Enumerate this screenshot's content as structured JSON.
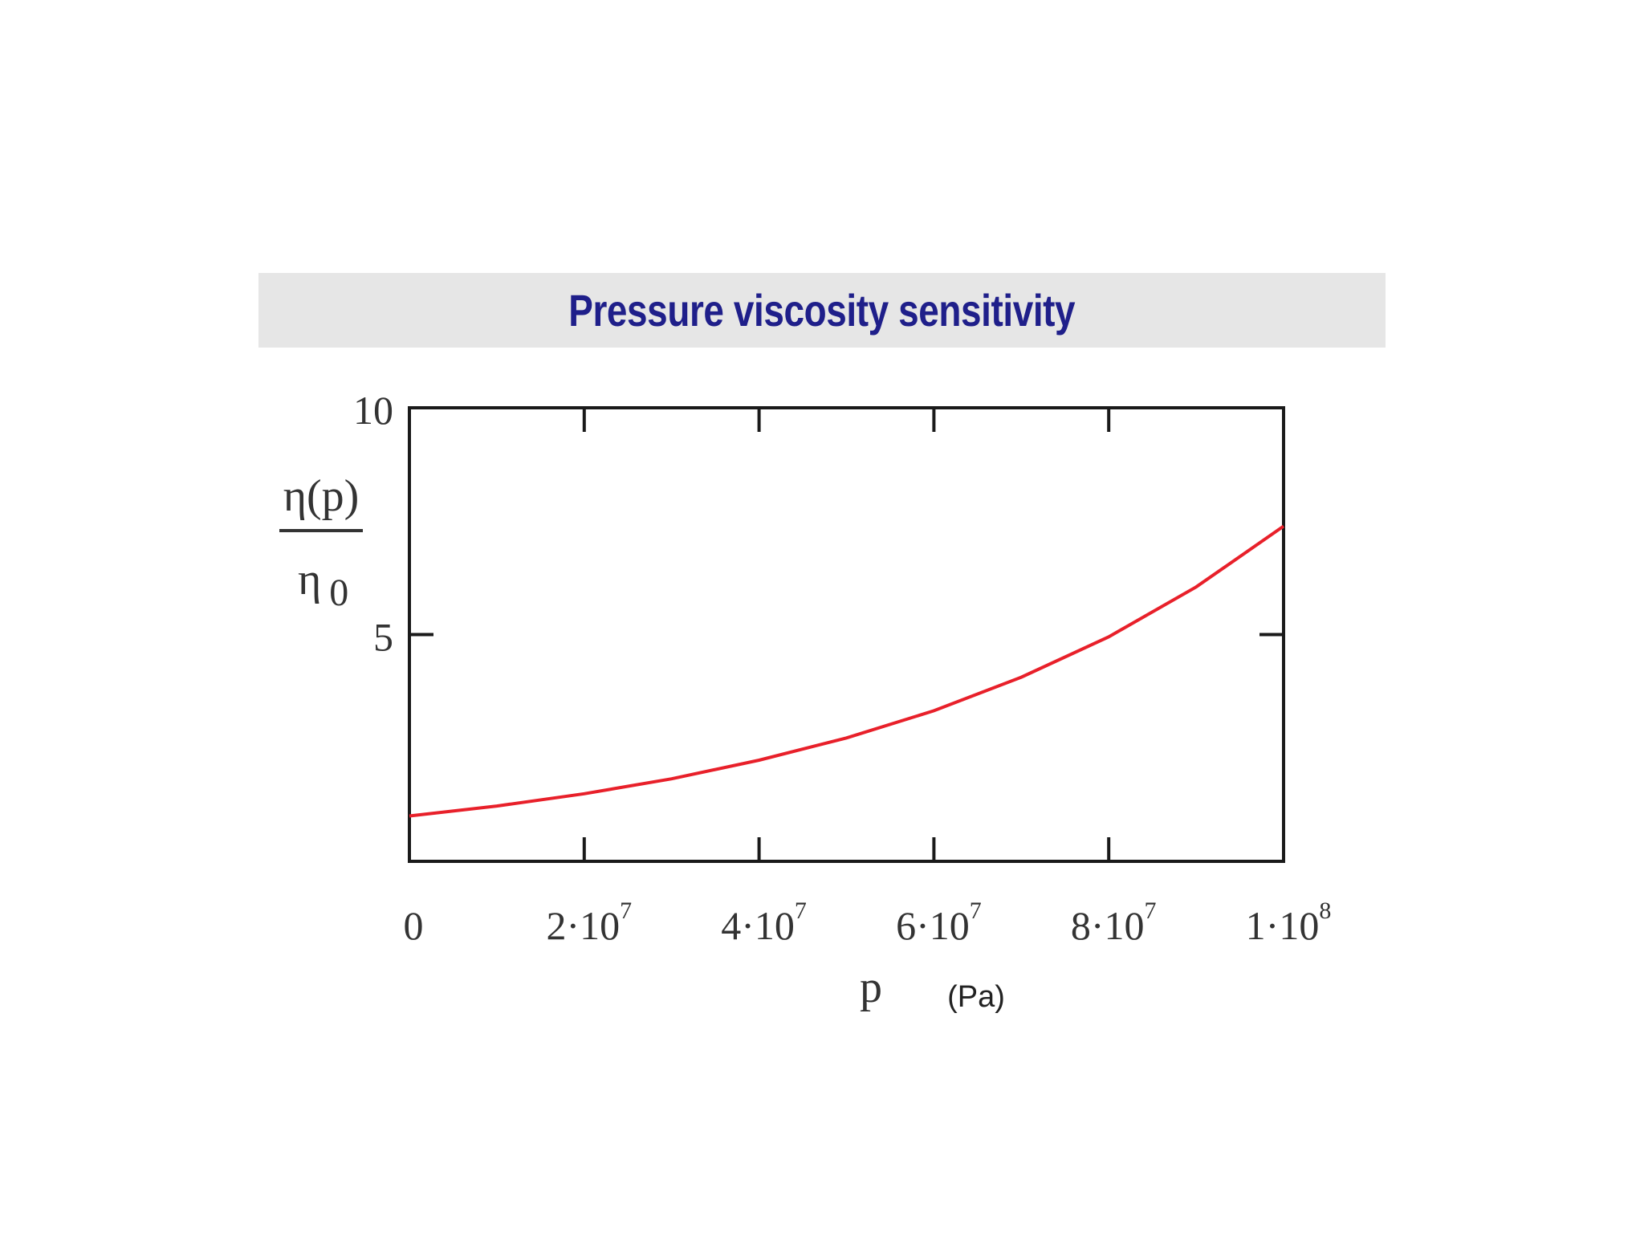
{
  "chart_data": {
    "type": "line",
    "title": "Pressure viscosity sensitivity",
    "xlabel": "p",
    "xunit": "(Pa)",
    "ylabel_numerator": "η(p)",
    "ylabel_denominator_symbol": "η",
    "ylabel_denominator_subscript": "0",
    "xlim": [
      0,
      100000000
    ],
    "ylim": [
      0,
      10
    ],
    "x_ticks": [
      {
        "value": 0,
        "mantissa": "0",
        "exponent": ""
      },
      {
        "value": 20000000,
        "mantissa": "2·10",
        "exponent": "7"
      },
      {
        "value": 40000000,
        "mantissa": "4·10",
        "exponent": "7"
      },
      {
        "value": 60000000,
        "mantissa": "6·10",
        "exponent": "7"
      },
      {
        "value": 80000000,
        "mantissa": "8·10",
        "exponent": "7"
      },
      {
        "value": 100000000,
        "mantissa": "1·10",
        "exponent": "8"
      }
    ],
    "y_ticks": [
      {
        "value": 5,
        "label": "5"
      },
      {
        "value": 10,
        "label": "10"
      }
    ],
    "grid": false,
    "series": [
      {
        "color": "#e8202a",
        "x": [
          0,
          10000000,
          20000000,
          30000000,
          40000000,
          50000000,
          60000000,
          70000000,
          80000000,
          90000000,
          100000000
        ],
        "y": [
          1.0,
          1.22,
          1.49,
          1.82,
          2.23,
          2.72,
          3.32,
          4.06,
          4.95,
          6.05,
          7.39
        ]
      }
    ]
  }
}
